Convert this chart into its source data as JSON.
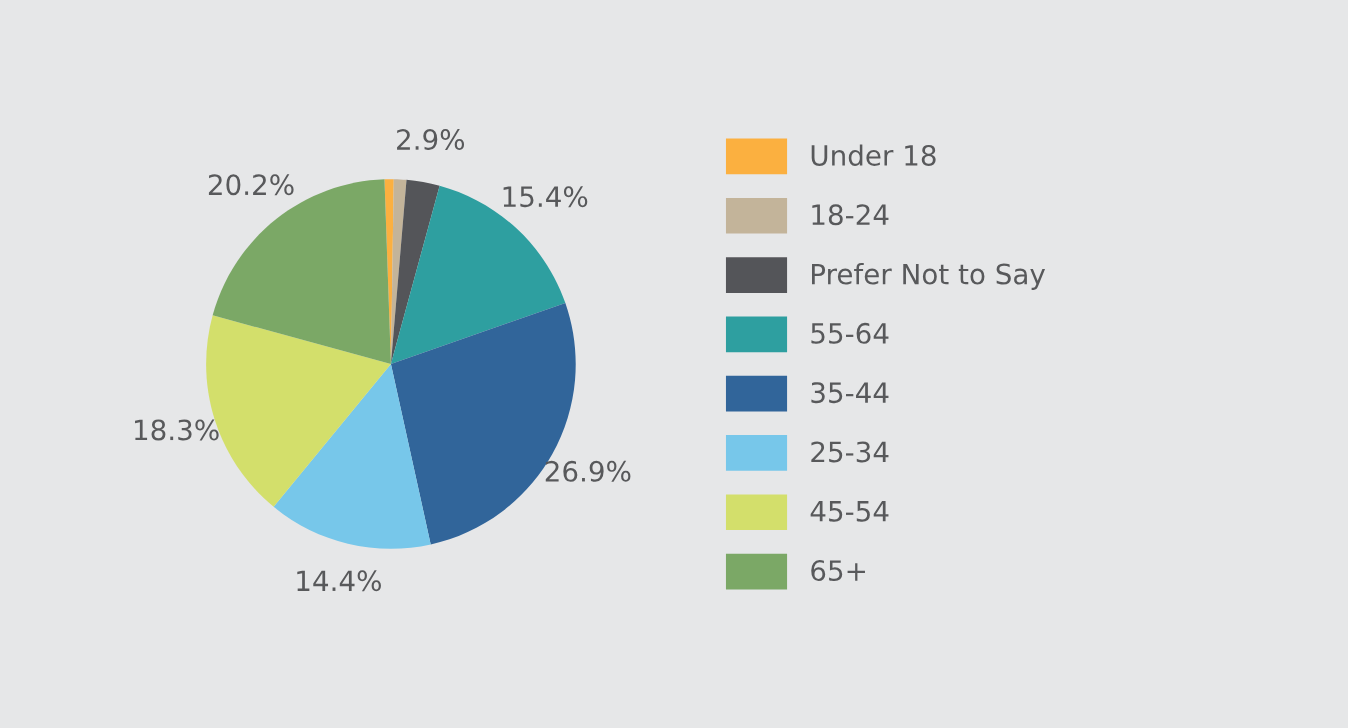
{
  "chart_data": {
    "type": "pie",
    "categories": [
      "Under 18",
      "18-24",
      "Prefer Not to Say",
      "55-64",
      "35-44",
      "25-34",
      "45-54",
      "65+"
    ],
    "values": [
      0.8,
      1.1,
      2.9,
      15.4,
      26.9,
      14.4,
      18.3,
      20.2
    ],
    "colors": [
      "#fbb040",
      "#c3b49a",
      "#545559",
      "#2e9fa0",
      "#31659a",
      "#77c7ea",
      "#d3df6b",
      "#7ba866"
    ],
    "value_labels": [
      null,
      null,
      "2.9%",
      "15.4%",
      "26.9%",
      "14.4%",
      "18.3%",
      "20.2%"
    ],
    "legend": "right"
  }
}
